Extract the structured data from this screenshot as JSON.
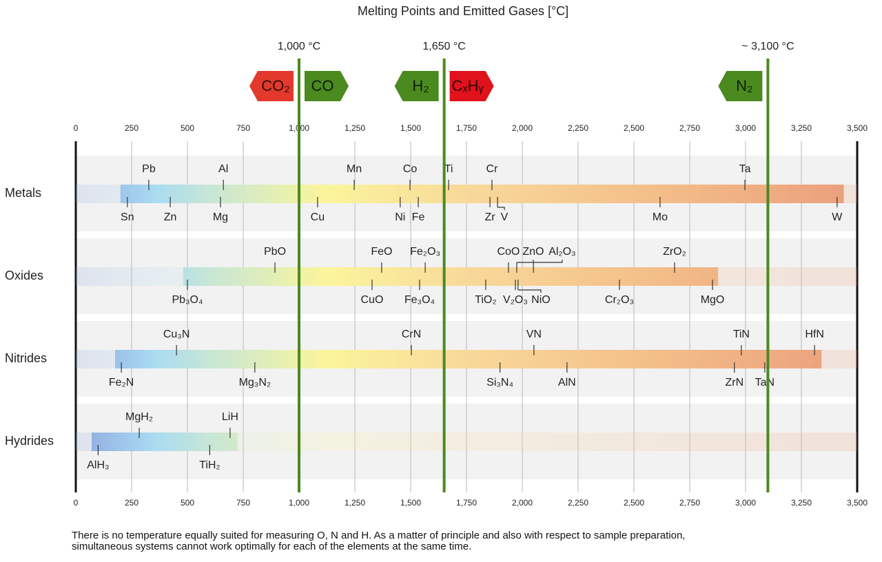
{
  "chart_data": {
    "type": "range",
    "title": "Melting Points and Emitted Gases [°C]",
    "xlim": [
      0,
      3500
    ],
    "xticks": [
      0,
      250,
      500,
      750,
      {
        "value": 1000,
        "label": "1,000"
      },
      {
        "value": 1250,
        "label": "1,250"
      },
      {
        "value": 1500,
        "label": "1,500"
      },
      {
        "value": 1750,
        "label": "1,750"
      },
      {
        "value": 2000,
        "label": "2,000"
      },
      {
        "value": 2250,
        "label": "2,250"
      },
      {
        "value": 2500,
        "label": "2,500"
      },
      {
        "value": 2750,
        "label": "2,750"
      },
      {
        "value": 3000,
        "label": "3,000"
      },
      {
        "value": 3250,
        "label": "3,250"
      },
      {
        "value": 3500,
        "label": "3,500"
      }
    ],
    "grid": true,
    "markers": [
      {
        "value": 1000,
        "label": "1,000 °C",
        "color": "#4a8a1f",
        "tags": [
          {
            "text": "CO₂",
            "color": "#e2392c",
            "side": "left"
          },
          {
            "text": "CO",
            "color": "#4a8a1f",
            "side": "right"
          }
        ]
      },
      {
        "value": 1650,
        "label": "1,650 °C",
        "color": "#4a8a1f",
        "tags": [
          {
            "text": "H₂",
            "color": "#4a8a1f",
            "side": "left"
          },
          {
            "text": "CₓHᵧ",
            "color": "#e0121c",
            "side": "right"
          }
        ]
      },
      {
        "value": 3100,
        "label": "~ 3,100 °C",
        "color": "#4a8a1f",
        "tags": [
          {
            "text": "N₂",
            "color": "#4a8a1f",
            "side": "left"
          }
        ]
      }
    ],
    "rows": [
      {
        "name": "Metals",
        "range": [
          200,
          3440
        ],
        "points": [
          {
            "label": "Pb",
            "value": 327,
            "side": "above"
          },
          {
            "label": "Al",
            "value": 661,
            "side": "above"
          },
          {
            "label": "Mn",
            "value": 1247,
            "side": "above"
          },
          {
            "label": "Co",
            "value": 1497,
            "side": "above"
          },
          {
            "label": "Ti",
            "value": 1670,
            "side": "above"
          },
          {
            "label": "Cr",
            "value": 1864,
            "side": "above"
          },
          {
            "label": "Ta",
            "value": 2997,
            "side": "above"
          },
          {
            "label": "Sn",
            "value": 231,
            "side": "below"
          },
          {
            "label": "Zn",
            "value": 423,
            "side": "below"
          },
          {
            "label": "Mg",
            "value": 648,
            "side": "below"
          },
          {
            "label": "Cu",
            "value": 1083,
            "side": "below"
          },
          {
            "label": "Ni",
            "value": 1453,
            "side": "below"
          },
          {
            "label": "Fe",
            "value": 1534,
            "side": "below"
          },
          {
            "label": "Zr",
            "value": 1855,
            "side": "below"
          },
          {
            "label": "V",
            "value": 1889,
            "side": "below"
          },
          {
            "label": "Mo",
            "value": 2617,
            "side": "below"
          },
          {
            "label": "W",
            "value": 3410,
            "side": "below"
          }
        ]
      },
      {
        "name": "Oxides",
        "range": [
          481,
          2877
        ],
        "points": [
          {
            "label": "PbO",
            "value": 892,
            "side": "above"
          },
          {
            "label": "FeO",
            "value": 1370,
            "side": "above"
          },
          {
            "label": "Fe₂O₃",
            "value": 1565,
            "side": "above"
          },
          {
            "label": "CoO",
            "value": 1938,
            "side": "above"
          },
          {
            "label": "ZnO",
            "value": 1975,
            "side": "above"
          },
          {
            "label": "Al₂O₃",
            "value": 2050,
            "side": "above"
          },
          {
            "label": "ZrO₂",
            "value": 2682,
            "side": "above"
          },
          {
            "label": "Pb₃O₄",
            "value": 500,
            "side": "below"
          },
          {
            "label": "CuO",
            "value": 1327,
            "side": "below"
          },
          {
            "label": "Fe₃O₄",
            "value": 1540,
            "side": "below"
          },
          {
            "label": "TiO₂",
            "value": 1836,
            "side": "below"
          },
          {
            "label": "V₂O₃",
            "value": 1969,
            "side": "below"
          },
          {
            "label": "NiO",
            "value": 1981,
            "side": "below"
          },
          {
            "label": "Cr₂O₃",
            "value": 2435,
            "side": "below"
          },
          {
            "label": "MgO",
            "value": 2852,
            "side": "below"
          }
        ]
      },
      {
        "name": "Nitrides",
        "range": [
          176,
          3340
        ],
        "points": [
          {
            "label": "Cu₃N",
            "value": 451,
            "side": "above"
          },
          {
            "label": "CrN",
            "value": 1503,
            "side": "above"
          },
          {
            "label": "VN",
            "value": 2052,
            "side": "above"
          },
          {
            "label": "TiN",
            "value": 2981,
            "side": "above"
          },
          {
            "label": "HfN",
            "value": 3309,
            "side": "above"
          },
          {
            "label": "Fe₂N",
            "value": 204,
            "side": "below"
          },
          {
            "label": "Mg₃N₂",
            "value": 802,
            "side": "below"
          },
          {
            "label": "Si₃N₄",
            "value": 1900,
            "side": "below"
          },
          {
            "label": "AlN",
            "value": 2200,
            "side": "below"
          },
          {
            "label": "ZrN",
            "value": 2950,
            "side": "below"
          },
          {
            "label": "TaN",
            "value": 3086,
            "side": "below"
          }
        ]
      },
      {
        "name": "Hydrides",
        "range": [
          71,
          725
        ],
        "points": [
          {
            "label": "MgH₂",
            "value": 284,
            "side": "above"
          },
          {
            "label": "LiH",
            "value": 691,
            "side": "above"
          },
          {
            "label": "AlH₃",
            "value": 100,
            "side": "below"
          },
          {
            "label": "TiH₂",
            "value": 600,
            "side": "below"
          }
        ]
      }
    ],
    "note": "There is no temperature equally suited for measuring O, N and H. As a matter of principle and also with respect to sample preparation, simultaneous systems cannot work optimally for each of the elements at the same time."
  }
}
